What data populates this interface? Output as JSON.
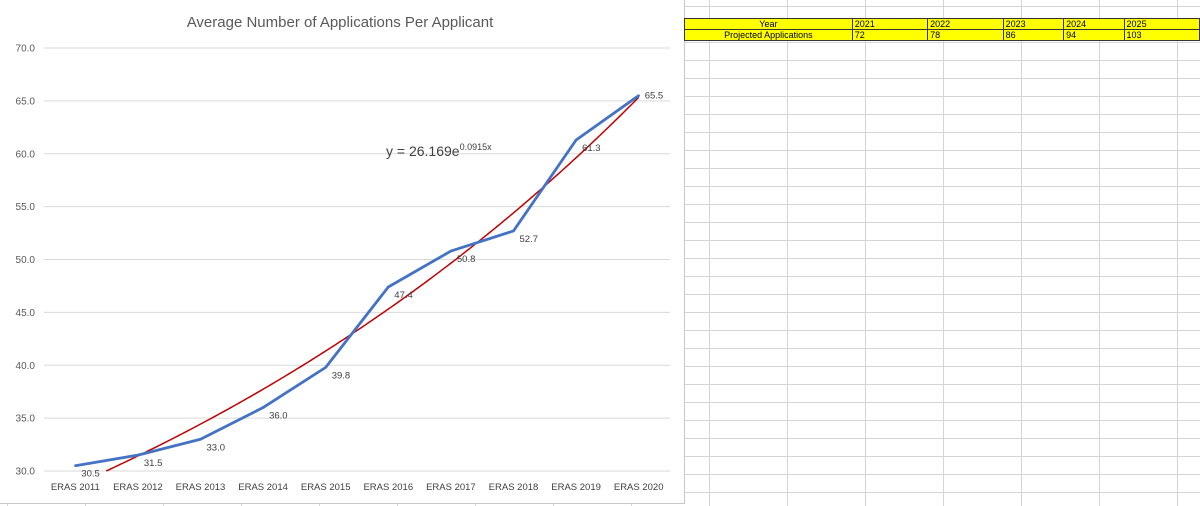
{
  "chart_data": {
    "type": "line",
    "title": "Average Number of Applications Per Applicant",
    "categories": [
      "ERAS 2011",
      "ERAS 2012",
      "ERAS 2013",
      "ERAS 2014",
      "ERAS 2015",
      "ERAS 2016",
      "ERAS 2017",
      "ERAS 2018",
      "ERAS 2019",
      "ERAS 2020"
    ],
    "series": [
      {
        "values": [
          30.5,
          31.5,
          33.0,
          36.0,
          39.8,
          47.4,
          50.8,
          52.7,
          61.3,
          65.5
        ],
        "color": "#4472c4",
        "data_labels": [
          "30.5",
          "31.5",
          "33.0",
          "36.0",
          "39.8",
          "47.4",
          "50.8",
          "52.7",
          "61.3",
          "65.5"
        ]
      }
    ],
    "trendline": {
      "type": "exponential",
      "a": 26.169,
      "b": 0.0915,
      "color": "#c00000",
      "equation_base": "y = 26.169e",
      "equation_exp": "0.0915x"
    },
    "yticks": [
      "30.0",
      "35.0",
      "40.0",
      "45.0",
      "50.0",
      "55.0",
      "60.0",
      "65.0",
      "70.0"
    ],
    "ylim": [
      30,
      70
    ],
    "grid": true,
    "legend": "none"
  },
  "projection_table": {
    "row_labels": [
      "Year",
      "Projected Applications"
    ],
    "years": [
      "2021",
      "2022",
      "2023",
      "2024",
      "2025"
    ],
    "projected": [
      "72",
      "78",
      "86",
      "94",
      "103"
    ],
    "fill_color": "#ffff00"
  }
}
